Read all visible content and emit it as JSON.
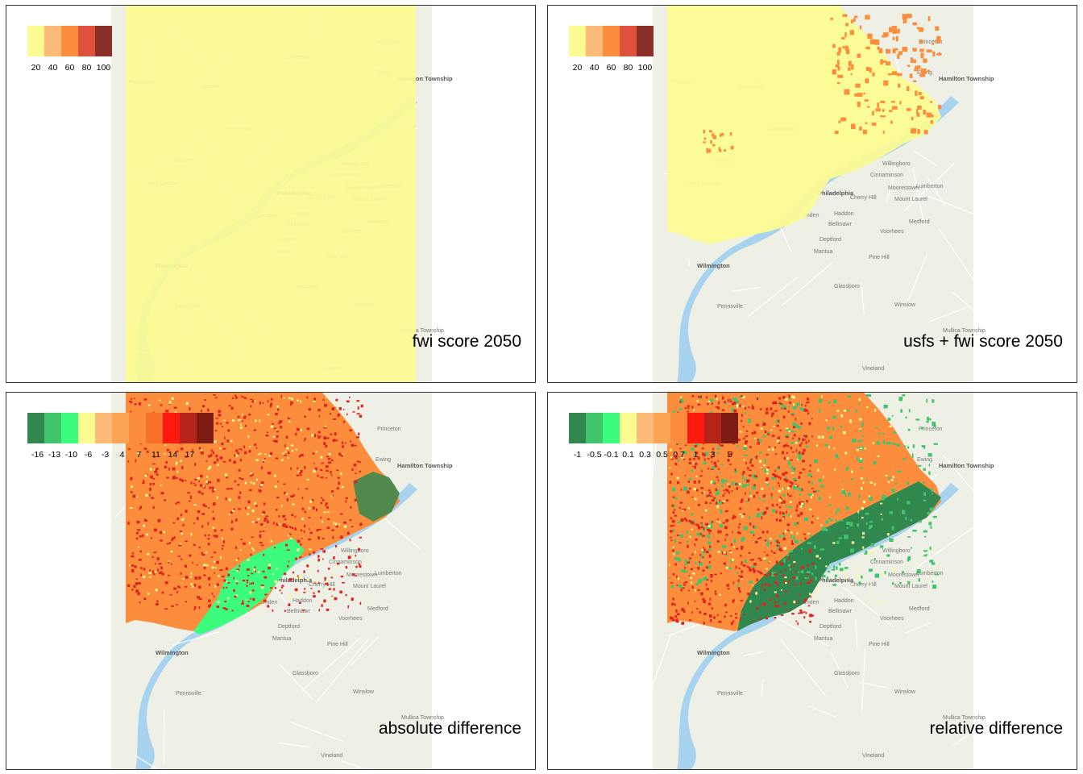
{
  "colors": {
    "basemap": "#eeeeea",
    "land": "#eef0e6",
    "water": "#a8d3ee",
    "road": "#ffffff",
    "low_fill": "#fbfb92",
    "orange": "#fc8d3c",
    "red": "#e0231f",
    "green_dark": "#31884e",
    "green": "#41c46b",
    "green_light": "#3cfc7d"
  },
  "basemap_places": [
    {
      "name": "Philadelphia",
      "big": true
    },
    {
      "name": "Wilmington",
      "big": true
    },
    {
      "name": "Hamilton Township",
      "big": true
    },
    {
      "name": "Lansdale"
    },
    {
      "name": "Doylestown"
    },
    {
      "name": "Norristown"
    },
    {
      "name": "Cherry Hill"
    },
    {
      "name": "Camden"
    },
    {
      "name": "Willingboro"
    },
    {
      "name": "Moorestown"
    },
    {
      "name": "Mount Laurel"
    },
    {
      "name": "Voorhees"
    },
    {
      "name": "Deptford"
    },
    {
      "name": "Glassboro"
    },
    {
      "name": "Vineland"
    },
    {
      "name": "Winslow"
    },
    {
      "name": "Pennsville"
    },
    {
      "name": "Princeton"
    },
    {
      "name": "Ewing"
    },
    {
      "name": "Pine Hill"
    },
    {
      "name": "Mantua"
    },
    {
      "name": "Medford"
    },
    {
      "name": "Lumberton"
    },
    {
      "name": "Bellmawr"
    },
    {
      "name": "Haddon"
    },
    {
      "name": "Cinnaminson"
    },
    {
      "name": "Mullica Township"
    },
    {
      "name": "West Chester"
    },
    {
      "name": "Malvern"
    },
    {
      "name": "Pottstown"
    }
  ],
  "panels": [
    {
      "title": "fwi score 2050",
      "legend": {
        "colors": [
          "#fbfb92",
          "#fdbb78",
          "#fc8d3c",
          "#e0503f",
          "#8a2f28"
        ],
        "labels": [
          "20",
          "40",
          "60",
          "80",
          "100"
        ]
      }
    },
    {
      "title": "usfs + fwi score 2050",
      "legend": {
        "colors": [
          "#fbfb92",
          "#fdbb78",
          "#fc8d3c",
          "#e0503f",
          "#8a2f28"
        ],
        "labels": [
          "20",
          "40",
          "60",
          "80",
          "100"
        ]
      }
    },
    {
      "title": "absolute difference",
      "legend": {
        "colors": [
          "#31884e",
          "#41c46b",
          "#3cfc7d",
          "#fbfb92",
          "#fdbb78",
          "#fca455",
          "#fc8d3c",
          "#f86f2a",
          "#ff1a10",
          "#b42418",
          "#7d1a12"
        ],
        "labels": [
          "-16",
          "-13",
          "-10",
          "-6",
          "-3",
          "4",
          "7",
          "11",
          "14",
          "17"
        ]
      }
    },
    {
      "title": "relative difference",
      "legend": {
        "colors": [
          "#31884e",
          "#41c46b",
          "#3cfc7d",
          "#fbfb92",
          "#fdbb78",
          "#fca455",
          "#fc8d3c",
          "#ff1a10",
          "#b42418",
          "#7d1a12"
        ],
        "labels": [
          "-1",
          "-0.5",
          "-0.1",
          "0.1",
          "0.3",
          "0.5",
          "0.7",
          "1",
          "3",
          "5"
        ]
      }
    }
  ]
}
